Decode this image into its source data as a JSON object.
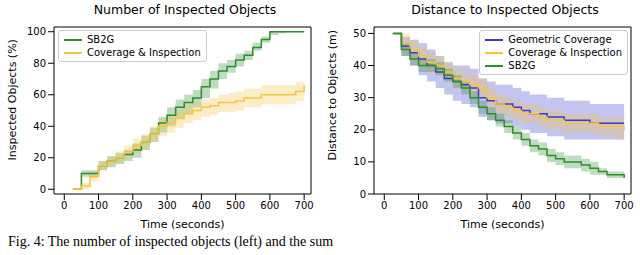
{
  "caption": "Fig. 4: The number of inspected objects (left) and the sum",
  "chart_data": [
    {
      "type": "line",
      "title": "Number of Inspected Objects",
      "x_label": "Time (seconds)",
      "y_label": "Inspected Objects (%)",
      "x": [
        25,
        50,
        75,
        100,
        125,
        150,
        175,
        200,
        225,
        250,
        275,
        300,
        325,
        350,
        375,
        400,
        425,
        450,
        475,
        500,
        525,
        550,
        575,
        600,
        625,
        650,
        675,
        700
      ],
      "xlim": [
        -30,
        720
      ],
      "xticks": [
        0,
        100,
        200,
        300,
        400,
        500,
        600,
        700
      ],
      "ylim": [
        -3,
        103
      ],
      "yticks": [
        0,
        20,
        40,
        60,
        80,
        100
      ],
      "legend": "upper left",
      "line_style": "step",
      "series": [
        {
          "name": "SB2G",
          "color": "#2e8b2e",
          "values": [
            0,
            10,
            10,
            15,
            18,
            20,
            22,
            25,
            30,
            35,
            42,
            47,
            52,
            55,
            58,
            65,
            70,
            75,
            78,
            82,
            85,
            90,
            95,
            100,
            100,
            100,
            100,
            100
          ],
          "lower": [
            0,
            8,
            8,
            12,
            14,
            16,
            18,
            20,
            25,
            30,
            36,
            40,
            45,
            48,
            52,
            58,
            64,
            70,
            74,
            78,
            82,
            88,
            93,
            98,
            99,
            100,
            100,
            100
          ],
          "upper": [
            0,
            12,
            12,
            18,
            21,
            23,
            25,
            29,
            34,
            39,
            46,
            52,
            57,
            60,
            63,
            70,
            75,
            80,
            82,
            86,
            88,
            93,
            97,
            100,
            100,
            100,
            100,
            100
          ]
        },
        {
          "name": "Coverage & Inspection",
          "color": "#f5c542",
          "values": [
            0,
            2,
            8,
            15,
            18,
            20,
            24,
            28,
            30,
            35,
            40,
            42,
            45,
            48,
            50,
            52,
            53,
            55,
            55,
            56,
            58,
            58,
            60,
            60,
            60,
            60,
            62,
            66
          ],
          "lower": [
            0,
            0,
            5,
            12,
            15,
            17,
            20,
            23,
            25,
            30,
            34,
            36,
            39,
            42,
            44,
            46,
            47,
            49,
            49,
            50,
            52,
            52,
            54,
            54,
            54,
            54,
            56,
            60
          ],
          "upper": [
            0,
            4,
            11,
            18,
            21,
            24,
            28,
            32,
            35,
            40,
            45,
            47,
            50,
            53,
            55,
            57,
            58,
            60,
            61,
            62,
            64,
            64,
            66,
            66,
            66,
            66,
            68,
            72
          ]
        }
      ]
    },
    {
      "type": "line",
      "title": "Distance to Inspected Objects",
      "x_label": "Time (seconds)",
      "y_label": "Distance to Objects (m)",
      "x": [
        25,
        50,
        75,
        100,
        125,
        150,
        175,
        200,
        225,
        250,
        275,
        300,
        325,
        350,
        375,
        400,
        425,
        450,
        475,
        500,
        525,
        550,
        575,
        600,
        625,
        650,
        675,
        700
      ],
      "xlim": [
        -30,
        720
      ],
      "xticks": [
        0,
        100,
        200,
        300,
        400,
        500,
        600,
        700
      ],
      "ylim": [
        0,
        52
      ],
      "yticks": [
        0,
        10,
        20,
        30,
        40,
        50
      ],
      "legend": "upper right",
      "line_style": "step",
      "series": [
        {
          "name": "Geometric Coverage",
          "color": "#3a3acc",
          "values": [
            50,
            46,
            44,
            42,
            40,
            38,
            36,
            35,
            34,
            33,
            30,
            29,
            28,
            28,
            27,
            26,
            25,
            25,
            24,
            24,
            23,
            23,
            23,
            22,
            22,
            22,
            22,
            22
          ],
          "lower": [
            50,
            43,
            40,
            37,
            35,
            33,
            31,
            29,
            28,
            27,
            24,
            23,
            22,
            22,
            21,
            20,
            19,
            19,
            18,
            18,
            17,
            17,
            17,
            17,
            17,
            17,
            17,
            17
          ],
          "upper": [
            50,
            49,
            48,
            47,
            45,
            43,
            41,
            40,
            40,
            39,
            36,
            35,
            34,
            34,
            33,
            32,
            31,
            31,
            30,
            30,
            29,
            29,
            29,
            28,
            28,
            28,
            28,
            28
          ]
        },
        {
          "name": "Coverage & Inspection",
          "color": "#f5c542",
          "values": [
            50,
            47,
            45,
            43,
            41,
            40,
            38,
            36,
            35,
            34,
            33,
            30,
            28,
            27,
            26,
            25,
            25,
            24,
            23,
            23,
            22,
            22,
            22,
            22,
            21,
            21,
            21,
            20
          ],
          "lower": [
            50,
            44,
            42,
            40,
            38,
            37,
            35,
            33,
            32,
            31,
            30,
            27,
            25,
            24,
            23,
            22,
            22,
            21,
            20,
            20,
            19,
            19,
            19,
            19,
            18,
            18,
            17,
            16
          ],
          "upper": [
            50,
            50,
            48,
            46,
            44,
            43,
            41,
            39,
            38,
            37,
            36,
            33,
            31,
            30,
            29,
            28,
            28,
            27,
            26,
            26,
            25,
            25,
            25,
            25,
            24,
            24,
            24,
            24
          ]
        },
        {
          "name": "SB2G",
          "color": "#2e8b2e",
          "values": [
            50,
            45,
            42,
            40,
            40,
            39,
            37,
            35,
            33,
            30,
            27,
            25,
            23,
            21,
            19,
            17,
            15,
            14,
            12,
            11,
            10,
            10,
            9,
            8,
            7,
            6,
            6,
            5
          ],
          "lower": [
            50,
            43,
            40,
            38,
            38,
            37,
            35,
            33,
            31,
            28,
            25,
            23,
            21,
            19,
            17,
            15,
            13,
            12,
            10,
            9,
            8,
            8,
            7,
            6,
            6,
            5,
            5,
            4
          ],
          "upper": [
            50,
            47,
            44,
            42,
            42,
            41,
            39,
            37,
            35,
            32,
            29,
            27,
            25,
            23,
            21,
            19,
            17,
            16,
            14,
            13,
            12,
            12,
            11,
            10,
            8,
            7,
            7,
            6
          ]
        }
      ]
    }
  ]
}
